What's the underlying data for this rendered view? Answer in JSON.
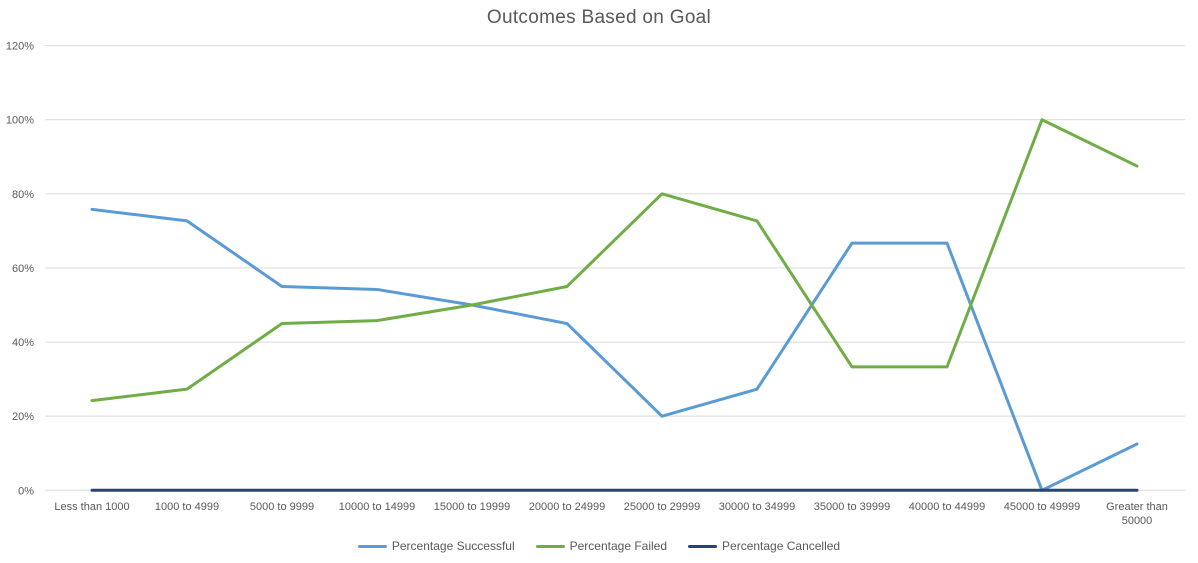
{
  "chart_data": {
    "type": "line",
    "title": "Outcomes Based on Goal",
    "categories": [
      "Less than 1000",
      "1000 to 4999",
      "5000 to 9999",
      "10000 to 14999",
      "15000 to 19999",
      "20000 to 24999",
      "25000 to 29999",
      "30000 to 34999",
      "35000 to 39999",
      "40000 to 44999",
      "45000 to 49999",
      "Greater than 50000"
    ],
    "series": [
      {
        "name": "Percentage Successful",
        "color": "#5B9BD5",
        "values": [
          75.8,
          72.7,
          55,
          54.2,
          50,
          45,
          20,
          27.3,
          66.7,
          66.7,
          0,
          12.5
        ]
      },
      {
        "name": "Percentage Failed",
        "color": "#70AD47",
        "values": [
          24.2,
          27.3,
          45,
          45.8,
          50,
          55,
          80,
          72.7,
          33.3,
          33.3,
          100,
          87.5
        ]
      },
      {
        "name": "Percentage Cancelled",
        "color": "#264478",
        "values": [
          0,
          0,
          0,
          0,
          0,
          0,
          0,
          0,
          0,
          0,
          0,
          0
        ]
      }
    ],
    "y_axis": {
      "tick_labels": [
        "0%",
        "20%",
        "40%",
        "60%",
        "80%",
        "100%",
        "120%"
      ],
      "min": 0,
      "max": 120,
      "step": 20
    },
    "ylim": [
      0,
      120
    ],
    "grid": true,
    "legend_position": "bottom",
    "colors": {
      "grid": "#D9D9D9",
      "axis_text": "#595959",
      "title_text": "#595959",
      "background": "#FFFFFF"
    }
  }
}
